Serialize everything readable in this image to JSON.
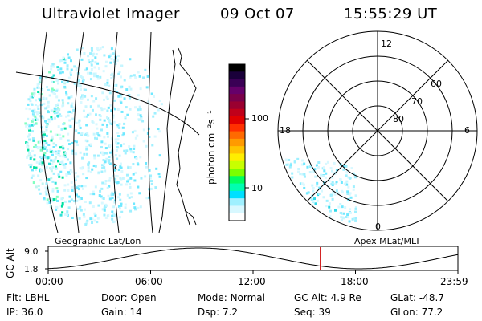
{
  "header": {
    "instrument": "Ultraviolet Imager",
    "date": "09 Oct 07",
    "time": "15:55:29 UT"
  },
  "colorbar": {
    "unit_label": "photon cm⁻²s⁻¹",
    "ticks": [
      "100",
      "10"
    ],
    "colors": [
      "#000000",
      "#1a003a",
      "#3a0055",
      "#66006a",
      "#7a004a",
      "#9a0030",
      "#c0001a",
      "#e00000",
      "#ff3000",
      "#ff6a00",
      "#ff9a00",
      "#ffc400",
      "#ffee00",
      "#c8ff00",
      "#7aff00",
      "#00ff60",
      "#00ffb0",
      "#00e0ff",
      "#9ff0ff",
      "#d8f8ff",
      "#ffffff"
    ]
  },
  "polar_plot": {
    "mlt_labels": {
      "top": "12",
      "left": "18",
      "right": "6",
      "bottom": "0"
    },
    "lat_labels": [
      "60",
      "70",
      "80"
    ]
  },
  "altitude_panel": {
    "ylabel": "GC Alt",
    "yticks": [
      "9.0",
      "1.8"
    ],
    "left_label": "Geographic Lat/Lon",
    "right_label": "Apex MLat/MLT",
    "xticks": [
      "00:00",
      "06:00",
      "12:00",
      "18:00",
      "23:59"
    ],
    "current_time_fraction": 0.664,
    "marker_color": "#cc0000"
  },
  "status": {
    "row1": [
      {
        "label": "Flt:",
        "value": "LBHL"
      },
      {
        "label": "Door:",
        "value": "Open"
      },
      {
        "label": "Mode:",
        "value": "Normal"
      },
      {
        "label": "GC Alt:",
        "value": "4.9 Re"
      },
      {
        "label": "GLat:",
        "value": "-48.7"
      }
    ],
    "row2": [
      {
        "label": "IP:",
        "value": "36.0"
      },
      {
        "label": "Gain:",
        "value": "14"
      },
      {
        "label": "Dsp:",
        "value": "7.2"
      },
      {
        "label": "Seq:",
        "value": "39"
      },
      {
        "label": "GLon:",
        "value": "77.2"
      }
    ]
  }
}
